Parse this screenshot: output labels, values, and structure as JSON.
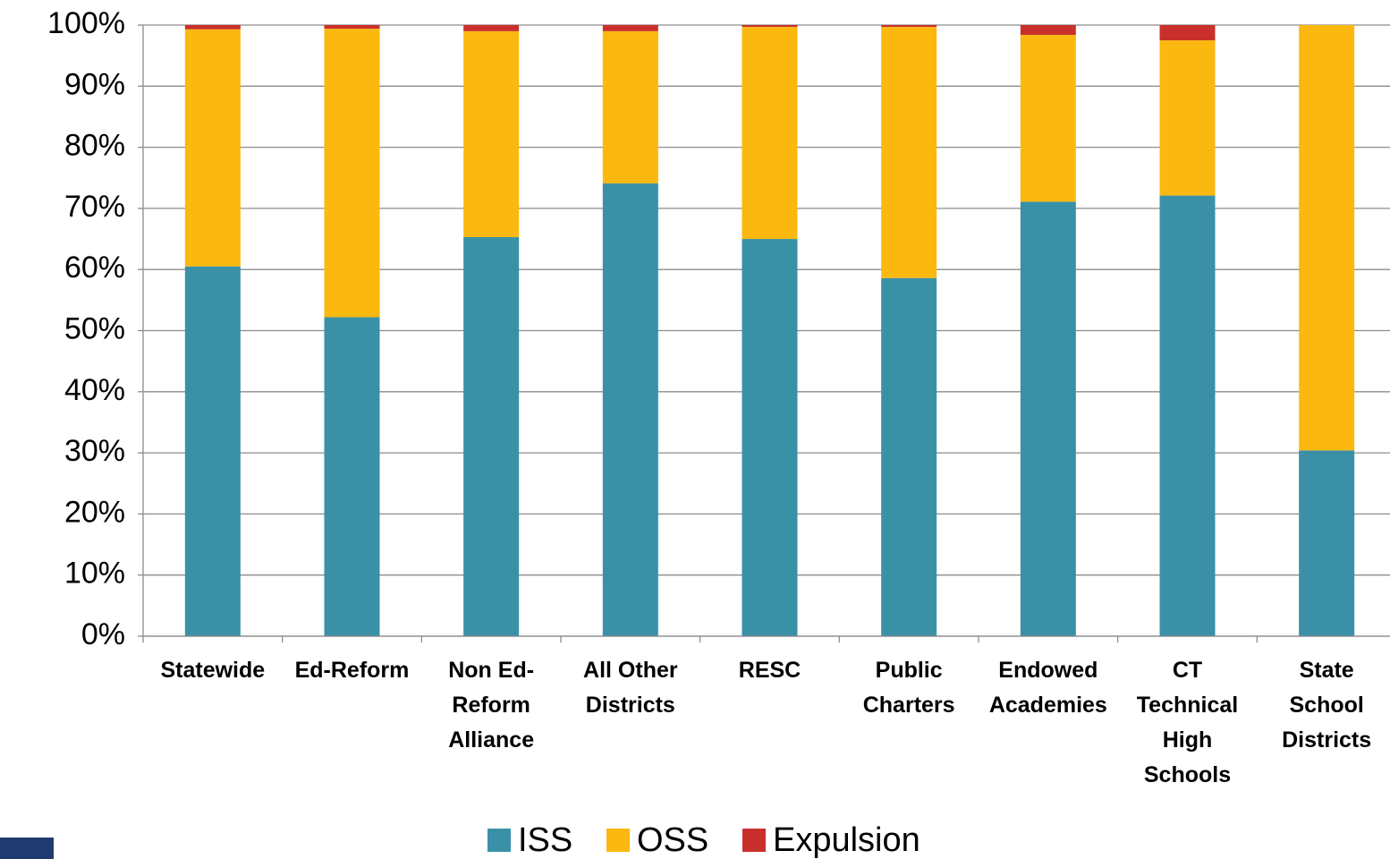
{
  "chart_data": {
    "type": "stacked_bar",
    "categories": [
      "Statewide",
      "Ed-Reform",
      "Non Ed-\nReform\nAlliance",
      "All Other\nDistricts",
      "RESC",
      "Public\nCharters",
      "Endowed\nAcademies",
      "CT\nTechnical\nHigh\nSchools",
      "State\nSchool\nDistricts"
    ],
    "series": [
      {
        "name": "ISS",
        "color": "#3a91a7",
        "values": [
          60.5,
          52.2,
          65.3,
          74.1,
          65.0,
          58.6,
          71.1,
          72.1,
          30.4
        ]
      },
      {
        "name": "OSS",
        "color": "#fbb80f",
        "values": [
          38.8,
          47.2,
          33.7,
          24.9,
          34.7,
          41.1,
          27.3,
          25.4,
          69.6
        ]
      },
      {
        "name": "Expulsion",
        "color": "#c9302c",
        "values": [
          0.7,
          0.6,
          1.0,
          1.0,
          0.3,
          0.3,
          1.6,
          2.5,
          0.0
        ]
      }
    ],
    "ylim": [
      0,
      100
    ],
    "yticks": [
      {
        "value": 0,
        "label": "0%"
      },
      {
        "value": 10,
        "label": "10%"
      },
      {
        "value": 20,
        "label": "20%"
      },
      {
        "value": 30,
        "label": "30%"
      },
      {
        "value": 40,
        "label": "40%"
      },
      {
        "value": 50,
        "label": "50%"
      },
      {
        "value": 60,
        "label": "60%"
      },
      {
        "value": 70,
        "label": "70%"
      },
      {
        "value": 80,
        "label": "80%"
      },
      {
        "value": 90,
        "label": "90%"
      },
      {
        "value": 100,
        "label": "100%"
      }
    ],
    "grid": true,
    "legend": "bottom"
  }
}
